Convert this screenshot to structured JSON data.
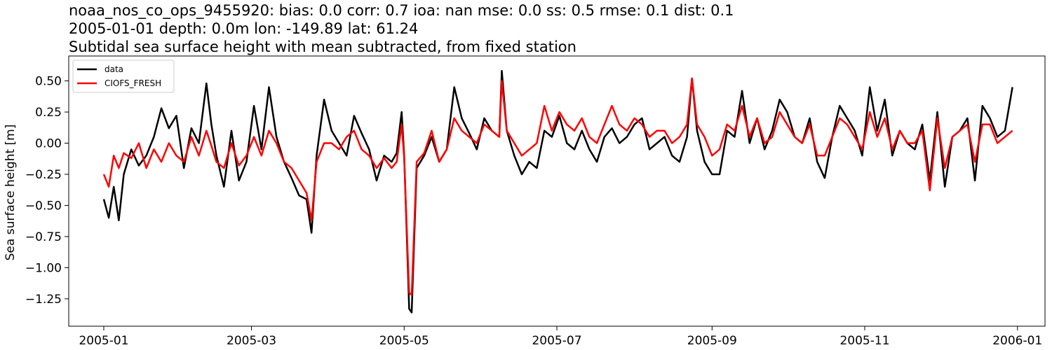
{
  "figure": {
    "title_lines": [
      "noaa_nos_co_ops_9455920: bias: 0.0  corr: 0.7  ioa: nan  mse: 0.0  ss: 0.5  rmse: 0.1  dist: 0.1",
      "2005-01-01 depth: 0.0m lon: -149.89 lat: 61.24",
      "Subtidal sea surface height with mean subtracted, from fixed station"
    ]
  },
  "chart_data": {
    "type": "line",
    "title": "noaa_nos_co_ops_9455920: bias: 0.0  corr: 0.7  ioa: nan  mse: 0.0  ss: 0.5  rmse: 0.1  dist: 0.1 / 2005-01-01 depth: 0.0m lon: -149.89 lat: 61.24 / Subtidal sea surface height with mean subtracted, from fixed station",
    "xlabel": "",
    "ylabel": "Sea surface height [m]",
    "x_type": "date",
    "xlim": [
      "2004-12-18",
      "2006-01-12"
    ],
    "ylim": [
      -1.47,
      0.7
    ],
    "x_ticks": [
      "2005-01-01",
      "2005-03-01",
      "2005-05-01",
      "2005-07-01",
      "2005-09-01",
      "2005-11-01",
      "2006-01-01"
    ],
    "x_tick_labels": [
      "2005-01",
      "2005-03",
      "2005-05",
      "2005-07",
      "2005-09",
      "2005-11",
      "2006-01"
    ],
    "y_ticks": [
      0.5,
      0.25,
      0.0,
      -0.25,
      -0.5,
      -0.75,
      -1.0,
      -1.25
    ],
    "y_tick_labels": [
      "0.50",
      "0.25",
      "0.00",
      "−0.25",
      "−0.50",
      "−0.75",
      "−1.00",
      "−1.25"
    ],
    "grid": false,
    "legend_position": "top-left",
    "series": [
      {
        "name": "data",
        "color": "#000000",
        "x": [
          "2005-01-01",
          "2005-01-03",
          "2005-01-05",
          "2005-01-07",
          "2005-01-09",
          "2005-01-12",
          "2005-01-15",
          "2005-01-18",
          "2005-01-21",
          "2005-01-24",
          "2005-01-27",
          "2005-01-30",
          "2005-02-02",
          "2005-02-05",
          "2005-02-08",
          "2005-02-11",
          "2005-02-13",
          "2005-02-15",
          "2005-02-18",
          "2005-02-21",
          "2005-02-24",
          "2005-02-27",
          "2005-03-02",
          "2005-03-05",
          "2005-03-08",
          "2005-03-11",
          "2005-03-14",
          "2005-03-17",
          "2005-03-20",
          "2005-03-23",
          "2005-03-25",
          "2005-03-27",
          "2005-03-30",
          "2005-04-02",
          "2005-04-05",
          "2005-04-08",
          "2005-04-11",
          "2005-04-14",
          "2005-04-17",
          "2005-04-20",
          "2005-04-23",
          "2005-04-26",
          "2005-04-28",
          "2005-04-30",
          "2005-05-01",
          "2005-05-03",
          "2005-05-04",
          "2005-05-06",
          "2005-05-09",
          "2005-05-12",
          "2005-05-15",
          "2005-05-18",
          "2005-05-21",
          "2005-05-24",
          "2005-05-27",
          "2005-05-30",
          "2005-06-02",
          "2005-06-05",
          "2005-06-08",
          "2005-06-09",
          "2005-06-11",
          "2005-06-14",
          "2005-06-17",
          "2005-06-20",
          "2005-06-23",
          "2005-06-26",
          "2005-06-29",
          "2005-07-02",
          "2005-07-05",
          "2005-07-08",
          "2005-07-11",
          "2005-07-14",
          "2005-07-17",
          "2005-07-20",
          "2005-07-23",
          "2005-07-26",
          "2005-07-29",
          "2005-08-01",
          "2005-08-04",
          "2005-08-07",
          "2005-08-10",
          "2005-08-13",
          "2005-08-16",
          "2005-08-19",
          "2005-08-22",
          "2005-08-24",
          "2005-08-26",
          "2005-08-29",
          "2005-09-01",
          "2005-09-04",
          "2005-09-07",
          "2005-09-10",
          "2005-09-13",
          "2005-09-16",
          "2005-09-19",
          "2005-09-22",
          "2005-09-25",
          "2005-09-28",
          "2005-10-01",
          "2005-10-04",
          "2005-10-07",
          "2005-10-10",
          "2005-10-13",
          "2005-10-16",
          "2005-10-19",
          "2005-10-22",
          "2005-10-25",
          "2005-10-28",
          "2005-10-31",
          "2005-11-03",
          "2005-11-06",
          "2005-11-09",
          "2005-11-12",
          "2005-11-15",
          "2005-11-18",
          "2005-11-21",
          "2005-11-24",
          "2005-11-27",
          "2005-11-30",
          "2005-12-03",
          "2005-12-06",
          "2005-12-09",
          "2005-12-12",
          "2005-12-15",
          "2005-12-18",
          "2005-12-21",
          "2005-12-24",
          "2005-12-27",
          "2005-12-30"
        ],
        "values": [
          -0.45,
          -0.6,
          -0.35,
          -0.62,
          -0.25,
          -0.05,
          -0.18,
          -0.1,
          0.05,
          0.28,
          0.12,
          0.22,
          -0.2,
          0.12,
          0.0,
          0.48,
          0.15,
          -0.1,
          -0.35,
          0.1,
          -0.3,
          -0.15,
          0.3,
          -0.05,
          0.45,
          0.05,
          -0.15,
          -0.28,
          -0.42,
          -0.45,
          -0.72,
          -0.1,
          0.35,
          0.1,
          0.0,
          -0.1,
          0.22,
          0.08,
          -0.05,
          -0.3,
          -0.1,
          -0.15,
          -0.08,
          0.25,
          -0.1,
          -1.33,
          -1.36,
          -0.2,
          -0.1,
          0.05,
          -0.15,
          -0.05,
          0.45,
          0.2,
          0.08,
          -0.05,
          0.2,
          0.1,
          0.05,
          0.58,
          0.1,
          -0.1,
          -0.25,
          -0.15,
          -0.2,
          0.1,
          0.05,
          0.22,
          0.0,
          -0.05,
          0.1,
          -0.05,
          -0.15,
          0.05,
          0.12,
          0.0,
          0.05,
          0.15,
          0.2,
          -0.05,
          0.0,
          0.05,
          -0.1,
          -0.15,
          0.05,
          0.52,
          0.1,
          -0.15,
          -0.25,
          -0.25,
          0.1,
          0.05,
          0.42,
          0.0,
          0.2,
          -0.05,
          0.1,
          0.35,
          0.25,
          0.05,
          0.0,
          0.2,
          -0.15,
          -0.28,
          0.05,
          0.3,
          0.2,
          0.1,
          -0.1,
          0.45,
          0.1,
          0.35,
          -0.1,
          0.1,
          0.0,
          -0.05,
          0.15,
          -0.3,
          0.25,
          -0.35,
          0.05,
          0.1,
          0.2,
          -0.3,
          0.3,
          0.2,
          0.05,
          0.1,
          0.45
        ]
      },
      {
        "name": "CIOFS_FRESH",
        "color": "#ff0000",
        "x": [
          "2005-01-01",
          "2005-01-03",
          "2005-01-05",
          "2005-01-07",
          "2005-01-09",
          "2005-01-12",
          "2005-01-15",
          "2005-01-18",
          "2005-01-21",
          "2005-01-24",
          "2005-01-27",
          "2005-01-30",
          "2005-02-02",
          "2005-02-05",
          "2005-02-08",
          "2005-02-11",
          "2005-02-13",
          "2005-02-15",
          "2005-02-18",
          "2005-02-21",
          "2005-02-24",
          "2005-02-27",
          "2005-03-02",
          "2005-03-05",
          "2005-03-08",
          "2005-03-11",
          "2005-03-14",
          "2005-03-17",
          "2005-03-20",
          "2005-03-23",
          "2005-03-25",
          "2005-03-27",
          "2005-03-30",
          "2005-04-02",
          "2005-04-05",
          "2005-04-08",
          "2005-04-11",
          "2005-04-14",
          "2005-04-17",
          "2005-04-20",
          "2005-04-23",
          "2005-04-26",
          "2005-04-28",
          "2005-04-30",
          "2005-05-01",
          "2005-05-03",
          "2005-05-04",
          "2005-05-06",
          "2005-05-09",
          "2005-05-12",
          "2005-05-15",
          "2005-05-18",
          "2005-05-21",
          "2005-05-24",
          "2005-05-27",
          "2005-05-30",
          "2005-06-02",
          "2005-06-05",
          "2005-06-08",
          "2005-06-09",
          "2005-06-11",
          "2005-06-14",
          "2005-06-17",
          "2005-06-20",
          "2005-06-23",
          "2005-06-26",
          "2005-06-29",
          "2005-07-02",
          "2005-07-05",
          "2005-07-08",
          "2005-07-11",
          "2005-07-14",
          "2005-07-17",
          "2005-07-20",
          "2005-07-23",
          "2005-07-26",
          "2005-07-29",
          "2005-08-01",
          "2005-08-04",
          "2005-08-07",
          "2005-08-10",
          "2005-08-13",
          "2005-08-16",
          "2005-08-19",
          "2005-08-22",
          "2005-08-24",
          "2005-08-26",
          "2005-08-29",
          "2005-09-01",
          "2005-09-04",
          "2005-09-07",
          "2005-09-10",
          "2005-09-13",
          "2005-09-16",
          "2005-09-19",
          "2005-09-22",
          "2005-09-25",
          "2005-09-28",
          "2005-10-01",
          "2005-10-04",
          "2005-10-07",
          "2005-10-10",
          "2005-10-13",
          "2005-10-16",
          "2005-10-19",
          "2005-10-22",
          "2005-10-25",
          "2005-10-28",
          "2005-10-31",
          "2005-11-03",
          "2005-11-06",
          "2005-11-09",
          "2005-11-12",
          "2005-11-15",
          "2005-11-18",
          "2005-11-21",
          "2005-11-24",
          "2005-11-27",
          "2005-11-30",
          "2005-12-03",
          "2005-12-06",
          "2005-12-09",
          "2005-12-12",
          "2005-12-15",
          "2005-12-18",
          "2005-12-21",
          "2005-12-24",
          "2005-12-27",
          "2005-12-30"
        ],
        "values": [
          -0.25,
          -0.35,
          -0.1,
          -0.2,
          -0.08,
          -0.12,
          0.0,
          -0.2,
          -0.05,
          -0.15,
          0.0,
          -0.1,
          -0.15,
          0.05,
          -0.1,
          0.1,
          -0.02,
          -0.15,
          -0.2,
          0.0,
          -0.18,
          -0.1,
          0.05,
          -0.1,
          0.1,
          0.0,
          -0.15,
          -0.2,
          -0.3,
          -0.4,
          -0.62,
          -0.15,
          0.0,
          0.0,
          -0.05,
          0.05,
          0.1,
          -0.05,
          -0.1,
          -0.2,
          -0.12,
          -0.2,
          -0.15,
          0.15,
          -0.12,
          -1.2,
          -1.22,
          -0.15,
          -0.08,
          0.1,
          -0.15,
          -0.05,
          0.2,
          0.1,
          0.05,
          0.0,
          0.15,
          0.1,
          0.05,
          0.5,
          0.1,
          0.0,
          -0.1,
          -0.05,
          0.0,
          0.3,
          0.1,
          0.25,
          0.15,
          0.1,
          0.2,
          0.05,
          0.0,
          0.15,
          0.3,
          0.15,
          0.1,
          0.2,
          0.15,
          0.05,
          0.1,
          0.1,
          0.0,
          0.05,
          0.15,
          0.52,
          0.15,
          0.05,
          -0.1,
          -0.05,
          0.15,
          0.1,
          0.3,
          0.05,
          0.2,
          0.0,
          0.05,
          0.25,
          0.15,
          0.05,
          0.0,
          0.15,
          -0.1,
          -0.1,
          0.05,
          0.2,
          0.15,
          0.05,
          -0.05,
          0.25,
          0.05,
          0.2,
          -0.05,
          0.1,
          0.0,
          0.0,
          0.1,
          -0.38,
          0.2,
          -0.2,
          0.05,
          0.1,
          0.15,
          -0.15,
          0.15,
          0.15,
          0.0,
          0.05,
          0.1
        ]
      }
    ]
  }
}
